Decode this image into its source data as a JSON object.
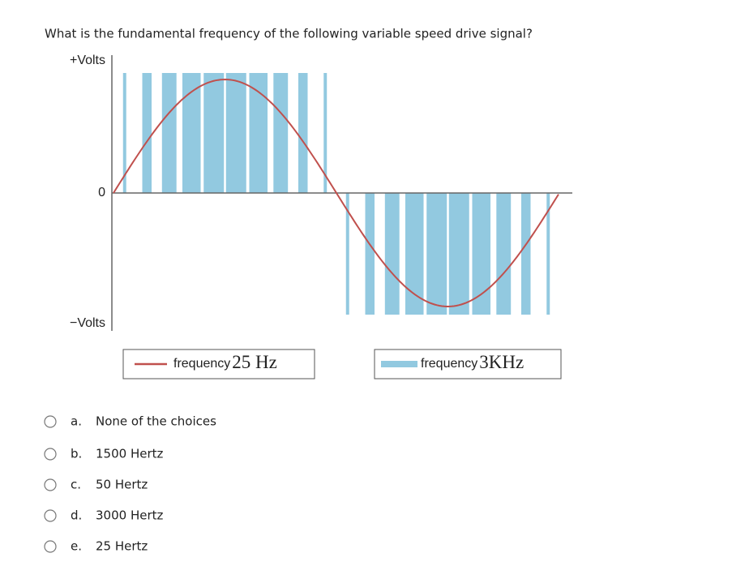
{
  "question": "What is the fundamental frequency of the following variable speed drive signal?",
  "figure": {
    "plus_volts": "+Volts",
    "zero": "0",
    "minus_volts": "−Volts",
    "legend": [
      {
        "label": "frequency",
        "value": "25 Hz"
      },
      {
        "label": "frequency",
        "value": "3KHz"
      }
    ]
  },
  "options": [
    {
      "letter": "a.",
      "text": "None of the choices"
    },
    {
      "letter": "b.",
      "text": "1500 Hertz"
    },
    {
      "letter": "c.",
      "text": "50 Hertz"
    },
    {
      "letter": "d.",
      "text": "3000 Hertz"
    },
    {
      "letter": "e.",
      "text": "25 Hertz"
    }
  ]
}
